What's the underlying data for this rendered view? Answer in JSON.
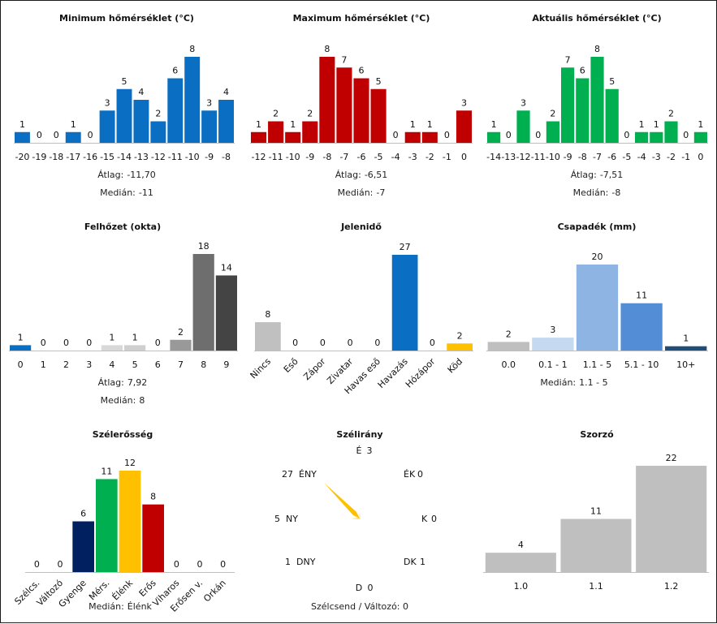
{
  "chart_data": [
    {
      "id": "min",
      "type": "bar",
      "title": "Minimum hőmérséklet (°C)",
      "categories": [
        "-20",
        "-19",
        "-18",
        "-17",
        "-16",
        "-15",
        "-14",
        "-13",
        "-12",
        "-11",
        "-10",
        "-9",
        "-8"
      ],
      "values": [
        1,
        0,
        0,
        1,
        0,
        3,
        5,
        4,
        2,
        6,
        8,
        3,
        4
      ],
      "colors": [
        "#0a6fc2"
      ],
      "ylim": [
        0,
        8
      ],
      "stats": [
        {
          "label": "Átlag:",
          "value": "-11,70"
        },
        {
          "label": "Medián:",
          "value": "-11"
        }
      ]
    },
    {
      "id": "max",
      "type": "bar",
      "title": "Maximum hőmérséklet (°C)",
      "categories": [
        "-12",
        "-11",
        "-10",
        "-9",
        "-8",
        "-7",
        "-6",
        "-5",
        "-4",
        "-3",
        "-2",
        "-1",
        "0"
      ],
      "values": [
        1,
        2,
        1,
        2,
        8,
        7,
        6,
        5,
        0,
        1,
        1,
        0,
        3
      ],
      "colors": [
        "#c00000"
      ],
      "ylim": [
        0,
        8
      ],
      "stats": [
        {
          "label": "Átlag:",
          "value": "-6,51"
        },
        {
          "label": "Medián:",
          "value": "-7"
        }
      ]
    },
    {
      "id": "akt",
      "type": "bar",
      "title": "Aktuális hőmérséklet (°C)",
      "categories": [
        "-14",
        "-13",
        "-12",
        "-11",
        "-10",
        "-9",
        "-8",
        "-7",
        "-6",
        "-5",
        "-4",
        "-3",
        "-2",
        "-1",
        "0"
      ],
      "values": [
        1,
        0,
        3,
        0,
        2,
        7,
        6,
        8,
        5,
        0,
        1,
        1,
        2,
        0,
        1
      ],
      "colors": [
        "#00b050"
      ],
      "ylim": [
        0,
        8
      ],
      "stats": [
        {
          "label": "Átlag:",
          "value": "-7,51"
        },
        {
          "label": "Medián:",
          "value": "-8"
        }
      ]
    },
    {
      "id": "felho",
      "type": "bar",
      "title": "Felhőzet (okta)",
      "categories": [
        "0",
        "1",
        "2",
        "3",
        "4",
        "5",
        "6",
        "7",
        "8",
        "9"
      ],
      "values": [
        1,
        0,
        0,
        0,
        1,
        1,
        0,
        2,
        18,
        14
      ],
      "colors": [
        "#0a6fc2",
        "#f0f0f0",
        "#e8e8e8",
        "#e0e0e0",
        "#d8d8d8",
        "#cfcfcf",
        "#b0b0b0",
        "#999999",
        "#6e6e6e",
        "#444444"
      ],
      "ylim": [
        0,
        18
      ],
      "stats": [
        {
          "label": "Átlag:",
          "value": "7,92"
        },
        {
          "label": "Medián:",
          "value": "8"
        }
      ]
    },
    {
      "id": "jelen",
      "type": "bar",
      "title": "Jelenidő",
      "categories": [
        "Nincs",
        "Eső",
        "Zápor",
        "Zivatar",
        "Havas eső",
        "Havazás",
        "Hózápor",
        "Köd"
      ],
      "values": [
        8,
        0,
        0,
        0,
        0,
        27,
        0,
        2
      ],
      "colors": [
        "#c0c0c0",
        "#c0c0c0",
        "#c0c0c0",
        "#c0c0c0",
        "#c0c0c0",
        "#0a6fc2",
        "#c0c0c0",
        "#ffc000"
      ],
      "ylim": [
        0,
        27
      ],
      "rotate_ticks": true,
      "stats": []
    },
    {
      "id": "csap",
      "type": "bar",
      "title": "Csapadék (mm)",
      "categories": [
        "0.0",
        "0.1 - 1",
        "1.1 - 5",
        "5.1 - 10",
        "10+"
      ],
      "values": [
        2,
        3,
        20,
        11,
        1
      ],
      "colors": [
        "#bfbfbf",
        "#c5d9f1",
        "#8db4e2",
        "#538dd5",
        "#1f4e79"
      ],
      "ylim": [
        0,
        20
      ],
      "stats": [
        {
          "label": "Medián:",
          "value": "1.1 - 5"
        }
      ]
    },
    {
      "id": "szel",
      "type": "bar",
      "title": "Szélerősség",
      "categories": [
        "Szélcs.",
        "Változó",
        "Gyenge",
        "Mérs.",
        "Élénk",
        "Erős",
        "Viharos",
        "Erősen v.",
        "Orkán"
      ],
      "values": [
        0,
        0,
        6,
        11,
        12,
        8,
        0,
        0,
        0
      ],
      "colors": [
        "#c0c0c0",
        "#c0c0c0",
        "#002060",
        "#00b050",
        "#ffc000",
        "#c00000",
        "#c0c0c0",
        "#c0c0c0",
        "#c0c0c0"
      ],
      "ylim": [
        0,
        12
      ],
      "rotate_ticks": true,
      "stats": [
        {
          "label": "Medián:",
          "value": "Élénk"
        }
      ]
    },
    {
      "id": "szelir",
      "type": "rose",
      "title": "Szélirány",
      "directions": [
        {
          "name": "É",
          "value": 3,
          "angle": 0
        },
        {
          "name": "ÉK",
          "value": 0,
          "angle": 45
        },
        {
          "name": "K",
          "value": 0,
          "angle": 90
        },
        {
          "name": "DK",
          "value": 1,
          "angle": 135
        },
        {
          "name": "D",
          "value": 0,
          "angle": 180
        },
        {
          "name": "DNY",
          "value": 1,
          "angle": 225
        },
        {
          "name": "NY",
          "value": 5,
          "angle": 270
        },
        {
          "name": "ÉNY",
          "value": 27,
          "angle": 315
        }
      ],
      "max_value": 27,
      "color": "#ffc000",
      "footer": "Szélcsend / Változó: 0"
    },
    {
      "id": "szorzo",
      "type": "bar",
      "title": "Szorzó",
      "categories": [
        "1.0",
        "1.1",
        "1.2"
      ],
      "values": [
        4,
        11,
        22
      ],
      "colors": [
        "#bfbfbf"
      ],
      "ylim": [
        0,
        22
      ],
      "stats": []
    }
  ]
}
